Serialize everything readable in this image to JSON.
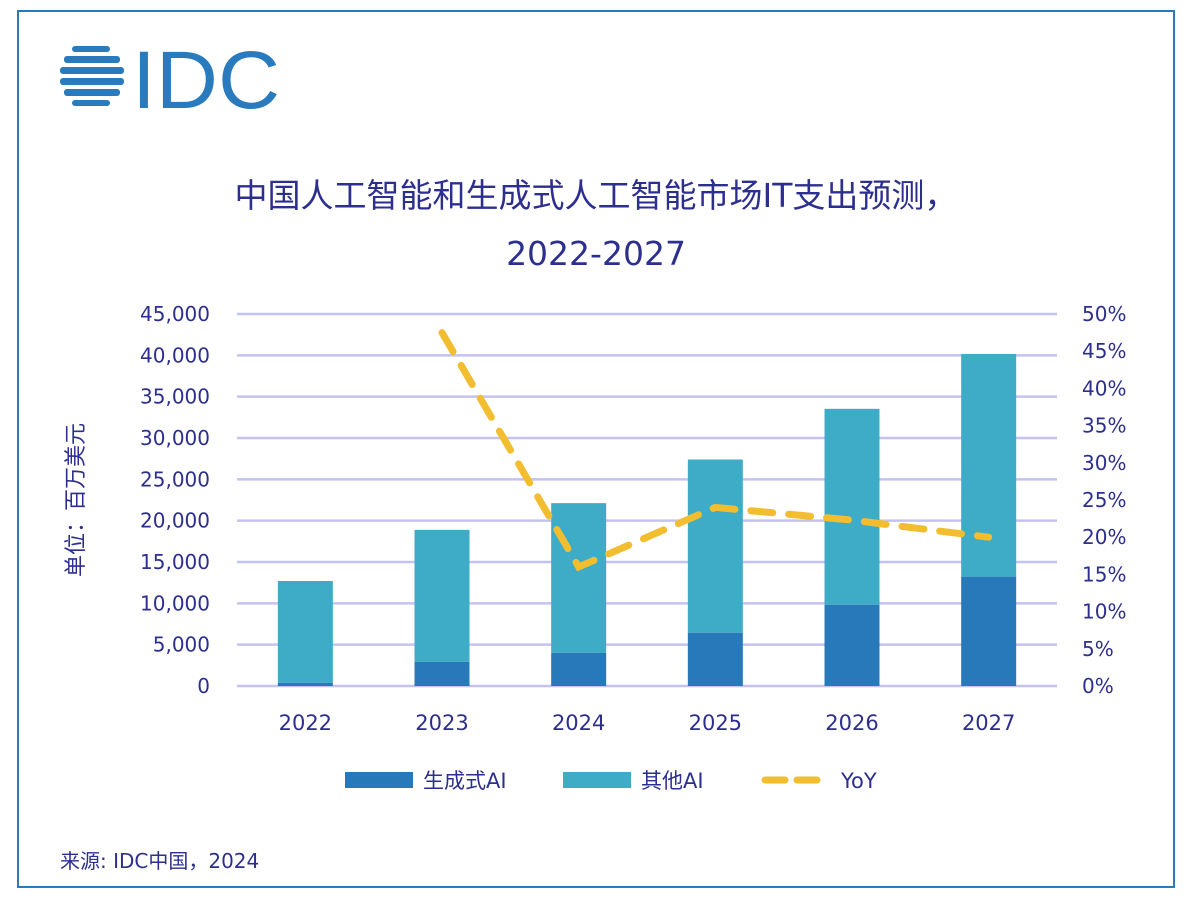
{
  "logo": {
    "text": "IDC",
    "color": "#2a7bbd"
  },
  "chart_data": {
    "type": "bar",
    "stacked": true,
    "title": "中国人工智能和生成式人工智能市场IT支出预测，",
    "subtitle": "2022-2027",
    "ylabel": "单位：百万美元",
    "xlabel": "",
    "categories": [
      "2022",
      "2023",
      "2024",
      "2025",
      "2026",
      "2027"
    ],
    "ylim": [
      0,
      45000
    ],
    "yticks": [
      "0",
      "5,000",
      "10,000",
      "15,000",
      "20,000",
      "25,000",
      "30,000",
      "35,000",
      "40,000",
      "45,000"
    ],
    "y2lim": [
      0,
      50
    ],
    "y2ticks": [
      "0%",
      "5%",
      "10%",
      "15%",
      "20%",
      "25%",
      "30%",
      "35%",
      "40%",
      "45%",
      "50%"
    ],
    "grid": true,
    "legend_position": "bottom",
    "series": [
      {
        "name": "生成式AI",
        "type": "bar",
        "color": "#2879b9",
        "values": [
          400,
          2940,
          4030,
          6450,
          9840,
          13230
        ]
      },
      {
        "name": "其他AI",
        "type": "bar",
        "color": "#3eacc7",
        "values": [
          12300,
          15950,
          18090,
          20950,
          23690,
          26930
        ]
      },
      {
        "name": "YoY",
        "type": "line",
        "axis": "right",
        "style": "dashed",
        "color": "#f2bd2f",
        "values": [
          null,
          47.5,
          16.0,
          24.0,
          22.3,
          20.0
        ]
      }
    ]
  },
  "source": "来源: IDC中国，2024"
}
